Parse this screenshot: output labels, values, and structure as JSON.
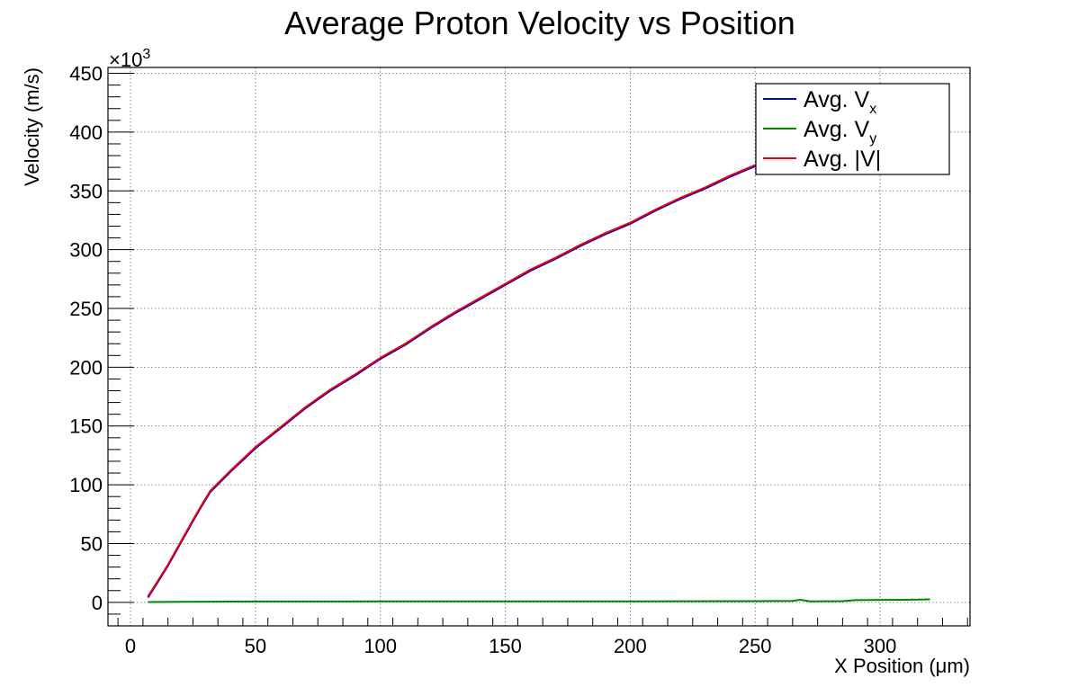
{
  "chart_data": {
    "type": "line",
    "title": "Average Proton Velocity vs Position",
    "xlabel": "X Position (μm)",
    "ylabel": "Velocity (m/s)",
    "y_multiplier_label": "×10",
    "y_multiplier_exponent": "3",
    "xlim": [
      -9,
      336
    ],
    "ylim": [
      -20,
      455
    ],
    "x_ticks": [
      0,
      50,
      100,
      150,
      200,
      250,
      300
    ],
    "y_ticks": [
      0,
      50,
      100,
      150,
      200,
      250,
      300,
      350,
      400,
      450
    ],
    "grid": true,
    "legend_position": "top-right",
    "series": [
      {
        "name": "Avg. V",
        "name_sub": "x",
        "color": "#0000cc",
        "x": [
          7,
          10,
          15,
          20,
          25,
          28,
          32,
          40,
          50,
          60,
          70,
          80,
          90,
          100,
          110,
          120,
          130,
          140,
          150,
          160,
          170,
          180,
          190,
          200,
          210,
          220,
          230,
          240,
          250,
          255
        ],
        "y": [
          4,
          14,
          31,
          50,
          69,
          80,
          94,
          111,
          131,
          148,
          165,
          180,
          193,
          207,
          219,
          233,
          246,
          258,
          270,
          282,
          292,
          303,
          313,
          322,
          333,
          343,
          352,
          362,
          371,
          375
        ]
      },
      {
        "name": "Avg. V",
        "name_sub": "y",
        "color": "#008800",
        "x": [
          7,
          20,
          50,
          100,
          150,
          200,
          250,
          265,
          268,
          272,
          285,
          290,
          300,
          310,
          320
        ],
        "y": [
          0.3,
          0.5,
          0.7,
          0.8,
          0.9,
          0.9,
          1.0,
          1.2,
          2.2,
          0.9,
          1.0,
          1.9,
          2.1,
          2.2,
          2.6
        ]
      },
      {
        "name": "Avg. |V|",
        "name_sub": "",
        "color": "#ee0000",
        "x": [
          7,
          10,
          15,
          20,
          25,
          28,
          32,
          40,
          50,
          60,
          70,
          80,
          90,
          100,
          110,
          120,
          130,
          140,
          150,
          160,
          170,
          180,
          190,
          200,
          210,
          220,
          230,
          240,
          250,
          255
        ],
        "y": [
          5,
          15,
          32,
          51,
          70,
          81,
          95,
          112,
          132,
          149,
          166,
          181,
          194,
          208,
          220,
          234,
          247,
          259,
          271,
          283,
          293,
          304,
          314,
          323,
          334,
          344,
          353,
          363,
          372,
          376
        ]
      }
    ]
  }
}
